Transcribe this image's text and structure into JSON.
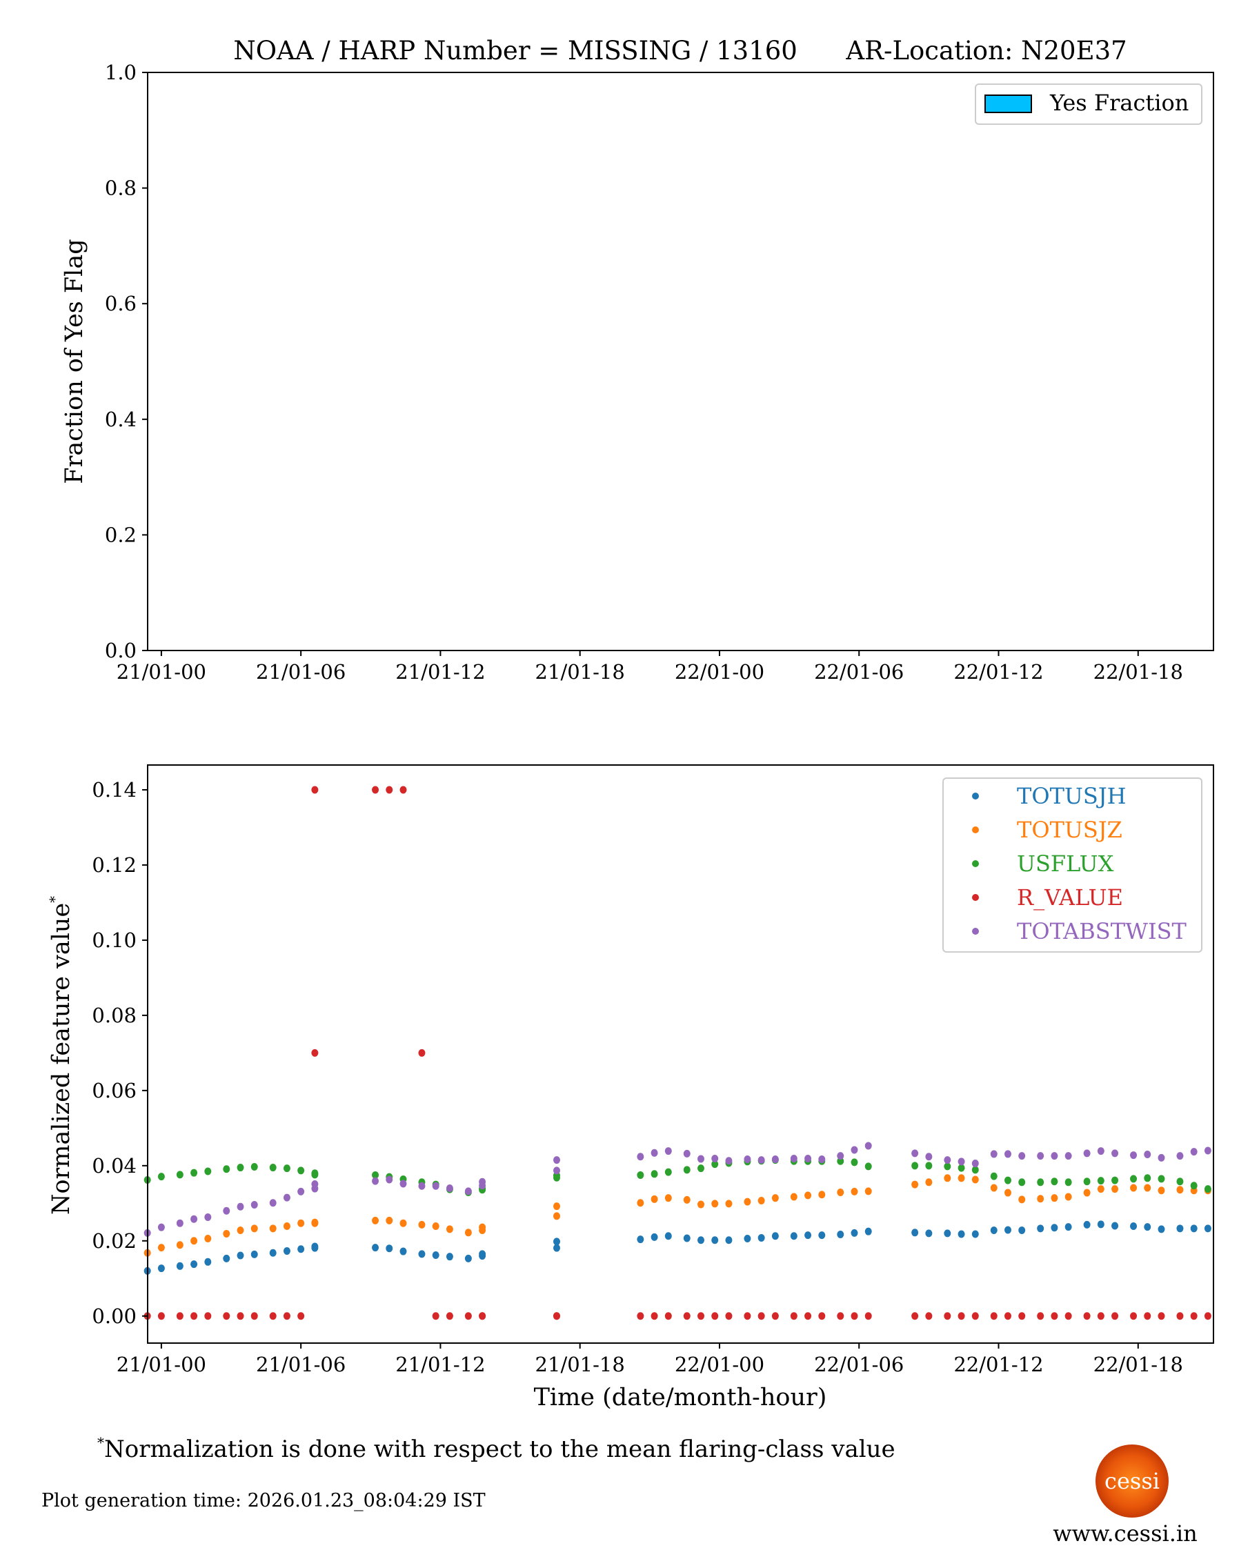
{
  "title": "NOAA / HARP Number = MISSING / 13160      AR-Location: N20E37",
  "footnote": "Normalization is done with respect to the mean flaring-class value",
  "footnote_mark": "*",
  "generation_time": "Plot generation time: 2026.01.23_08:04:29 IST",
  "logo_text": "cessi",
  "website": "www.cessi.in",
  "chart_data": [
    {
      "type": "bar",
      "ylabel": "Fraction of Yes Flag",
      "ylim": [
        0,
        1.0
      ],
      "yticks": [
        "0.0",
        "0.2",
        "0.4",
        "0.6",
        "0.8",
        "1.0"
      ],
      "xticks": [
        "21/01-00",
        "21/01-06",
        "21/01-12",
        "21/01-18",
        "22/01-00",
        "22/01-06",
        "22/01-12",
        "22/01-18"
      ],
      "legend": {
        "position": "top-right",
        "entries": [
          {
            "name": "Yes Fraction",
            "color": "#00bfff"
          }
        ]
      },
      "values": []
    },
    {
      "type": "scatter",
      "xlabel": "Time (date/month-hour)",
      "ylabel": "Normalized feature value",
      "ylabel_mark": "*",
      "ylim": [
        -0.0072,
        0.1466
      ],
      "yticks": [
        "0.00",
        "0.02",
        "0.04",
        "0.06",
        "0.08",
        "0.10",
        "0.12",
        "0.14"
      ],
      "xticks": [
        "21/01-00",
        "21/01-06",
        "21/01-12",
        "21/01-18",
        "22/01-00",
        "22/01-06",
        "22/01-12",
        "22/01-18"
      ],
      "legend": "top-right",
      "x": [
        "20/01-23:24",
        "21/01-00:00",
        "21/01-00:48",
        "21/01-01:24",
        "21/01-02:00",
        "21/01-02:48",
        "21/01-03:24",
        "21/01-04:00",
        "21/01-04:48",
        "21/01-05:24",
        "21/01-06:00",
        "21/01-06:36",
        "21/01-06:36",
        "21/01-09:12",
        "21/01-09:48",
        "21/01-10:24",
        "21/01-11:12",
        "21/01-11:48",
        "21/01-12:24",
        "21/01-13:12",
        "21/01-13:48",
        "21/01-13:48",
        "21/01-17:00",
        "21/01-17:00",
        "21/01-20:36",
        "21/01-21:12",
        "21/01-21:48",
        "21/01-22:36",
        "21/01-23:12",
        "21/01-23:48",
        "22/01-00:24",
        "22/01-01:12",
        "22/01-01:48",
        "22/01-02:24",
        "22/01-03:12",
        "22/01-03:48",
        "22/01-04:24",
        "22/01-05:12",
        "22/01-05:48",
        "22/01-06:24",
        "22/01-08:24",
        "22/01-09:00",
        "22/01-09:48",
        "22/01-10:24",
        "22/01-11:00",
        "22/01-11:48",
        "22/01-12:24",
        "22/01-13:00",
        "22/01-13:48",
        "22/01-14:24",
        "22/01-15:00",
        "22/01-15:48",
        "22/01-16:24",
        "22/01-17:00",
        "22/01-17:48",
        "22/01-18:24",
        "22/01-19:00",
        "22/01-19:48",
        "22/01-20:24",
        "22/01-21:00"
      ],
      "series": [
        {
          "name": "TOTUSJH",
          "color": "#1f77b4",
          "values": [
            0.012,
            0.0127,
            0.0133,
            0.0138,
            0.0144,
            0.0153,
            0.0161,
            0.0164,
            0.0168,
            0.0173,
            0.0178,
            0.0181,
            0.0185,
            0.0182,
            0.018,
            0.0172,
            0.0165,
            0.0162,
            0.0158,
            0.0153,
            0.016,
            0.0165,
            0.0198,
            0.0181,
            0.0204,
            0.021,
            0.0213,
            0.0207,
            0.0202,
            0.0202,
            0.0202,
            0.0206,
            0.0208,
            0.0213,
            0.0213,
            0.0215,
            0.0215,
            0.0217,
            0.0221,
            0.0225,
            0.0222,
            0.022,
            0.022,
            0.0218,
            0.0218,
            0.0228,
            0.0229,
            0.0228,
            0.0233,
            0.0235,
            0.0237,
            0.0243,
            0.0244,
            0.024,
            0.0239,
            0.0237,
            0.0231,
            0.0233,
            0.0233,
            0.0233
          ]
        },
        {
          "name": "TOTUSJZ",
          "color": "#ff7f0e",
          "values": [
            0.0168,
            0.0182,
            0.0189,
            0.02,
            0.0206,
            0.0219,
            0.0228,
            0.0233,
            0.0233,
            0.0239,
            0.0247,
            0.0247,
            0.0249,
            0.0254,
            0.0254,
            0.0247,
            0.0243,
            0.0239,
            0.0231,
            0.0222,
            0.0228,
            0.0236,
            0.0292,
            0.0266,
            0.0301,
            0.0311,
            0.0314,
            0.0309,
            0.0297,
            0.0299,
            0.0299,
            0.0304,
            0.0307,
            0.0314,
            0.0317,
            0.0321,
            0.0323,
            0.0329,
            0.0331,
            0.0332,
            0.035,
            0.0356,
            0.0367,
            0.0367,
            0.0363,
            0.0341,
            0.0328,
            0.031,
            0.0312,
            0.0314,
            0.0317,
            0.0328,
            0.0338,
            0.0338,
            0.0341,
            0.0341,
            0.0334,
            0.0336,
            0.0334,
            0.0334
          ]
        },
        {
          "name": "USFLUX",
          "color": "#2ca02c",
          "values": [
            0.0362,
            0.0371,
            0.0376,
            0.0381,
            0.0385,
            0.0391,
            0.0395,
            0.0397,
            0.0395,
            0.0393,
            0.0387,
            0.0376,
            0.038,
            0.0375,
            0.037,
            0.0364,
            0.0356,
            0.035,
            0.0337,
            0.0329,
            0.0336,
            0.0339,
            0.0374,
            0.0368,
            0.0375,
            0.0378,
            0.0383,
            0.0389,
            0.0393,
            0.0404,
            0.0407,
            0.0411,
            0.0413,
            0.0415,
            0.0412,
            0.0412,
            0.0412,
            0.0412,
            0.0409,
            0.0398,
            0.04,
            0.04,
            0.0398,
            0.0394,
            0.0389,
            0.0372,
            0.0361,
            0.0356,
            0.0356,
            0.0358,
            0.0356,
            0.0358,
            0.036,
            0.0361,
            0.0365,
            0.0367,
            0.0365,
            0.0358,
            0.0347,
            0.0338
          ]
        },
        {
          "name": "R_VALUE",
          "color": "#d62728",
          "values": [
            0,
            0,
            0,
            0,
            0,
            0,
            0,
            0,
            0,
            0,
            0,
            0.14,
            0.07,
            0.14,
            0.14,
            0.14,
            0.07,
            0,
            0,
            0,
            0,
            0,
            0,
            0,
            0,
            0,
            0,
            0,
            0,
            0,
            0,
            0,
            0,
            0,
            0,
            0,
            0,
            0,
            0,
            0,
            0,
            0,
            0,
            0,
            0,
            0,
            0,
            0,
            0,
            0,
            0,
            0,
            0,
            0,
            0,
            0,
            0,
            0,
            0,
            0
          ]
        },
        {
          "name": "TOTABSTWIST",
          "color": "#9467bd",
          "values": [
            0.0221,
            0.0236,
            0.0247,
            0.0258,
            0.0263,
            0.028,
            0.0291,
            0.0296,
            0.0301,
            0.0315,
            0.0331,
            0.0339,
            0.0351,
            0.0359,
            0.0363,
            0.0352,
            0.0346,
            0.0346,
            0.034,
            0.0332,
            0.0347,
            0.0357,
            0.0415,
            0.0387,
            0.0424,
            0.0434,
            0.0439,
            0.0432,
            0.0418,
            0.0419,
            0.0413,
            0.0417,
            0.0415,
            0.0417,
            0.0419,
            0.0419,
            0.0417,
            0.0426,
            0.0442,
            0.0453,
            0.0433,
            0.0424,
            0.0415,
            0.0411,
            0.0406,
            0.0431,
            0.0431,
            0.0426,
            0.0426,
            0.0426,
            0.0426,
            0.0433,
            0.0439,
            0.0433,
            0.0428,
            0.043,
            0.0421,
            0.0426,
            0.0437,
            0.044
          ]
        }
      ]
    }
  ]
}
